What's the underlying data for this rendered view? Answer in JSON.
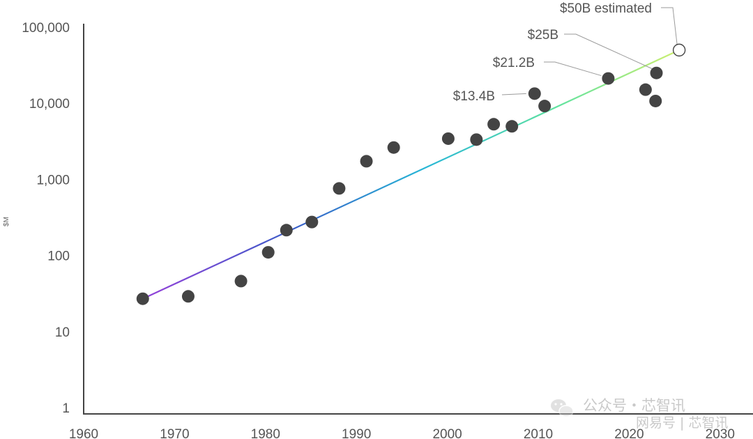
{
  "chart_data": {
    "type": "scatter",
    "title": "",
    "xlabel": "",
    "ylabel": "$M",
    "xlim": [
      1960,
      2030
    ],
    "ylim": [
      1,
      100000
    ],
    "yscale": "log",
    "x_ticks": [
      "1960",
      "1970",
      "1980",
      "1990",
      "2000",
      "2010",
      "2020",
      "2030"
    ],
    "y_ticks": [
      "1",
      "10",
      "100",
      "1,000",
      "10,000",
      "100,000"
    ],
    "grid": false,
    "points": [
      {
        "x": 1966.5,
        "y": 27
      },
      {
        "x": 1971.5,
        "y": 29
      },
      {
        "x": 1977.3,
        "y": 46
      },
      {
        "x": 1980.3,
        "y": 110
      },
      {
        "x": 1982.3,
        "y": 215
      },
      {
        "x": 1985.1,
        "y": 275
      },
      {
        "x": 1988.1,
        "y": 760
      },
      {
        "x": 1991.1,
        "y": 1730
      },
      {
        "x": 1994.1,
        "y": 2620
      },
      {
        "x": 2000.1,
        "y": 3430
      },
      {
        "x": 2003.2,
        "y": 3330
      },
      {
        "x": 2005.1,
        "y": 5300
      },
      {
        "x": 2007.1,
        "y": 4980
      },
      {
        "x": 2009.6,
        "y": 13400
      },
      {
        "x": 2010.7,
        "y": 9200
      },
      {
        "x": 2017.7,
        "y": 21200
      },
      {
        "x": 2021.8,
        "y": 15100
      },
      {
        "x": 2022.9,
        "y": 10700
      },
      {
        "x": 2023.0,
        "y": 25000
      },
      {
        "x": 2025.5,
        "y": 50000,
        "estimated": true
      }
    ],
    "trend_line": {
      "x": [
        1966.5,
        2025.5
      ],
      "y": [
        27,
        50000
      ],
      "gradient": [
        "#8e44d8",
        "#3a5cc8",
        "#27b6d6",
        "#61e3a0",
        "#d9f06a"
      ]
    },
    "annotations": [
      {
        "text": "$50B estimated",
        "x": 2025.5,
        "y": 50000
      },
      {
        "text": "$25B",
        "x": 2023.0,
        "y": 25000
      },
      {
        "text": "$21.2B",
        "x": 2017.7,
        "y": 21200
      },
      {
        "text": "$13.4B",
        "x": 2009.6,
        "y": 13400
      }
    ],
    "colors": {
      "point": "#444444",
      "estimated_fill": "#ffffff",
      "axis": "#444444",
      "text": "#555555"
    }
  },
  "watermark": {
    "account": "公众号・芯智讯",
    "site": "网易号 | 芯智讯"
  }
}
